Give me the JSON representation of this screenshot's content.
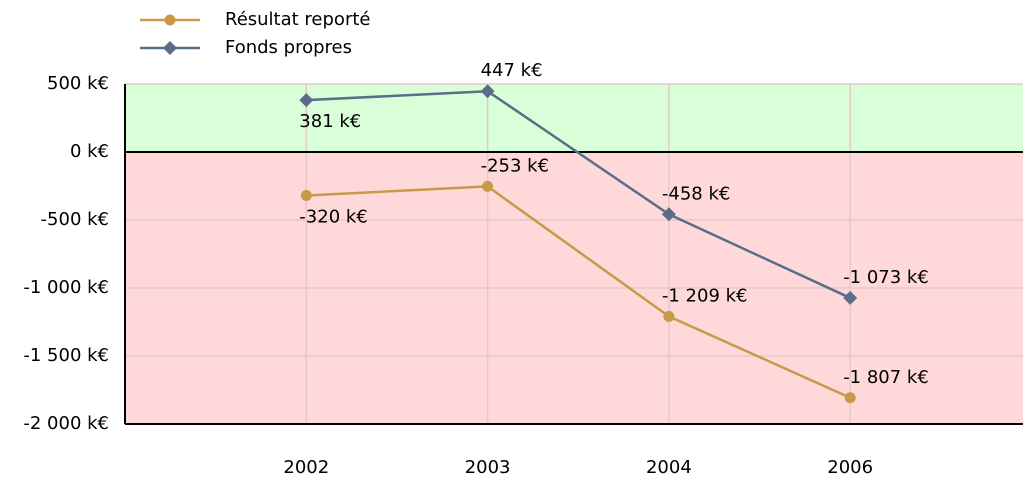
{
  "chart_data": {
    "type": "line",
    "categories": [
      "2002",
      "2003",
      "2004",
      "2006"
    ],
    "series": [
      {
        "name": "Résultat reporté",
        "color": "#c9994a",
        "marker": "circle",
        "values": [
          -320,
          -253,
          -1209,
          -1807
        ],
        "value_labels": [
          "-320 k€",
          "-253 k€",
          "-1 209 k€",
          "-1 807 k€"
        ]
      },
      {
        "name": "Fonds propres",
        "color": "#5a6e8a",
        "marker": "diamond",
        "values": [
          381,
          447,
          -458,
          -1073
        ],
        "value_labels": [
          "381 k€",
          "447 k€",
          "-458 k€",
          "-1 073 k€"
        ]
      }
    ],
    "ylim": [
      -2000,
      500
    ],
    "yticks": [
      {
        "value": -2000,
        "label": "-2 000 k€"
      },
      {
        "value": -1500,
        "label": "-1 500 k€"
      },
      {
        "value": -1000,
        "label": "-1 000 k€"
      },
      {
        "value": -500,
        "label": "-500 k€"
      },
      {
        "value": 0,
        "label": "0 k€"
      },
      {
        "value": 500,
        "label": "500 k€"
      }
    ],
    "grid": true
  }
}
